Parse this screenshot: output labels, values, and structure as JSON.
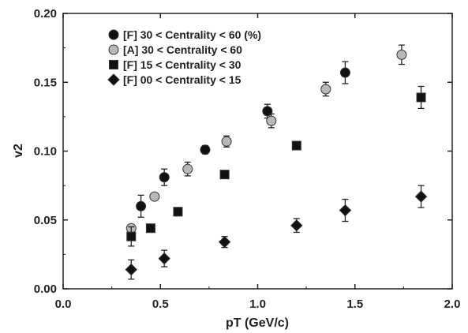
{
  "chart_data": {
    "type": "scatter",
    "xlabel": "pT (GeV/c)",
    "ylabel": "v2",
    "xlim": [
      0.0,
      2.0
    ],
    "ylim": [
      0.0,
      0.2
    ],
    "x_ticks": [
      "0.0",
      "0.5",
      "1.0",
      "1.5",
      "2.0"
    ],
    "y_ticks": [
      "0.00",
      "0.05",
      "0.10",
      "0.15",
      "0.20"
    ],
    "legend_position": "top-left",
    "grid": false,
    "series": [
      {
        "name": "[F] 30 < Centrality < 60 (%)",
        "marker": "circle",
        "color": "#111111",
        "points": [
          {
            "x": 0.4,
            "y": 0.06,
            "err": 0.008
          },
          {
            "x": 0.52,
            "y": 0.081,
            "err": 0.006
          },
          {
            "x": 0.73,
            "y": 0.101,
            "err": 0.003
          },
          {
            "x": 1.05,
            "y": 0.129,
            "err": 0.005
          },
          {
            "x": 1.45,
            "y": 0.157,
            "err": 0.008
          }
        ]
      },
      {
        "name": "[A] 30 < Centrality < 60",
        "marker": "circle",
        "color": "#b8b8b8",
        "points": [
          {
            "x": 0.35,
            "y": 0.044,
            "err": 0.002
          },
          {
            "x": 0.47,
            "y": 0.067,
            "err": 0.002
          },
          {
            "x": 0.64,
            "y": 0.087,
            "err": 0.005
          },
          {
            "x": 0.84,
            "y": 0.107,
            "err": 0.004
          },
          {
            "x": 1.07,
            "y": 0.122,
            "err": 0.005
          },
          {
            "x": 1.35,
            "y": 0.145,
            "err": 0.005
          },
          {
            "x": 1.74,
            "y": 0.17,
            "err": 0.007
          }
        ]
      },
      {
        "name": "[F] 15 < Centrality < 30",
        "marker": "square",
        "color": "#111111",
        "points": [
          {
            "x": 0.35,
            "y": 0.038,
            "err": 0.007
          },
          {
            "x": 0.45,
            "y": 0.044,
            "err": 0.002
          },
          {
            "x": 0.59,
            "y": 0.056,
            "err": 0.003
          },
          {
            "x": 0.83,
            "y": 0.083,
            "err": 0.002
          },
          {
            "x": 1.2,
            "y": 0.104,
            "err": 0.002
          },
          {
            "x": 1.84,
            "y": 0.139,
            "err": 0.008
          }
        ]
      },
      {
        "name": "[F] 00 < Centrality < 15",
        "marker": "diamond",
        "color": "#111111",
        "points": [
          {
            "x": 0.35,
            "y": 0.014,
            "err": 0.007
          },
          {
            "x": 0.52,
            "y": 0.022,
            "err": 0.006
          },
          {
            "x": 0.83,
            "y": 0.034,
            "err": 0.004
          },
          {
            "x": 1.2,
            "y": 0.046,
            "err": 0.005
          },
          {
            "x": 1.45,
            "y": 0.057,
            "err": 0.008
          },
          {
            "x": 1.84,
            "y": 0.067,
            "err": 0.008
          }
        ]
      }
    ]
  }
}
